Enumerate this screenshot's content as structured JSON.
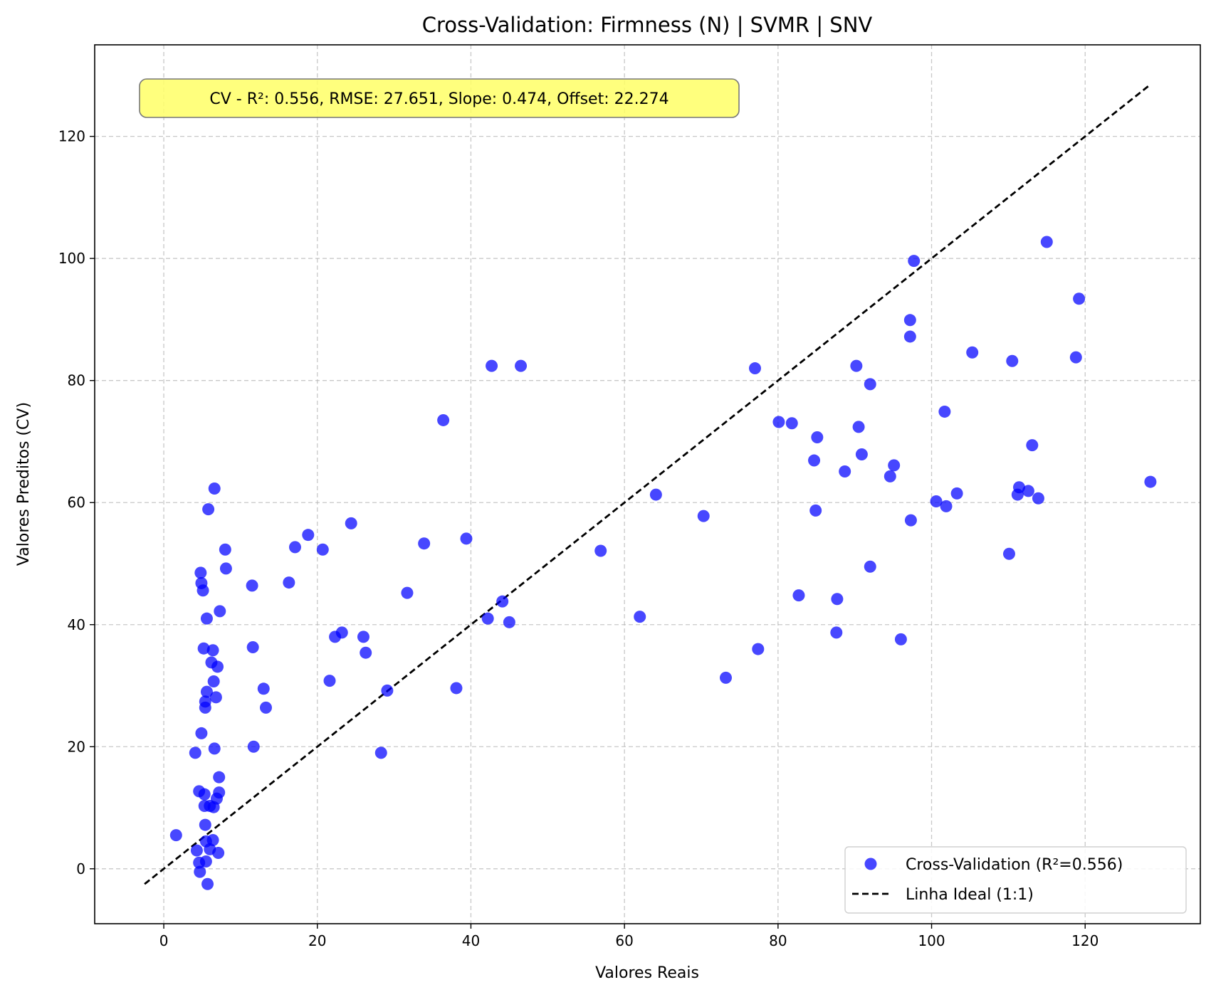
{
  "chart_data": {
    "type": "scatter",
    "title": "Cross-Validation: Firmness (N) | SVMR | SNV",
    "xlabel": "Valores Reais",
    "ylabel": "Valores Preditos (CV)",
    "xlim": [
      -9,
      135
    ],
    "ylim": [
      -9,
      135
    ],
    "xticks": [
      0,
      20,
      40,
      60,
      80,
      100,
      120
    ],
    "yticks": [
      0,
      20,
      40,
      60,
      80,
      100,
      120
    ],
    "grid": true,
    "legend_position": "lower-right",
    "annotation": "CV - R²: 0.556, RMSE: 27.651, Slope: 0.474, Offset: 22.274",
    "annotation_color": "#ffff66",
    "series": [
      {
        "name": "Cross-Validation (R²=0.556)",
        "kind": "scatter",
        "color": "#0000ff",
        "points": [
          [
            1.6,
            5.5
          ],
          [
            4.1,
            19
          ],
          [
            4.3,
            3
          ],
          [
            4.6,
            12.7
          ],
          [
            4.6,
            1
          ],
          [
            4.7,
            -0.5
          ],
          [
            4.8,
            48.5
          ],
          [
            4.9,
            46.8
          ],
          [
            4.9,
            22.2
          ],
          [
            5.1,
            45.6
          ],
          [
            5.2,
            36.1
          ],
          [
            5.3,
            12.2
          ],
          [
            5.3,
            10.3
          ],
          [
            5.4,
            7.2
          ],
          [
            5.4,
            27.4
          ],
          [
            5.4,
            26.4
          ],
          [
            5.5,
            1.2
          ],
          [
            5.6,
            29
          ],
          [
            5.6,
            41
          ],
          [
            5.7,
            -2.5
          ],
          [
            5.8,
            58.9
          ],
          [
            6,
            3.2
          ],
          [
            6,
            10.3
          ],
          [
            6.2,
            33.8
          ],
          [
            6.4,
            35.8
          ],
          [
            6.5,
            30.7
          ],
          [
            6.6,
            62.3
          ],
          [
            6.6,
            19.7
          ],
          [
            6.8,
            28.1
          ],
          [
            6.9,
            11.5
          ],
          [
            7,
            33.1
          ],
          [
            7.1,
            2.6
          ],
          [
            7.2,
            15
          ],
          [
            7.2,
            12.5
          ],
          [
            7.3,
            42.2
          ],
          [
            8,
            52.3
          ],
          [
            8.1,
            49.2
          ],
          [
            6.4,
            4.7
          ],
          [
            6.5,
            10.1
          ],
          [
            5.5,
            4.5
          ],
          [
            11.5,
            46.4
          ],
          [
            11.6,
            36.3
          ],
          [
            11.7,
            20
          ],
          [
            13,
            29.5
          ],
          [
            13.3,
            26.4
          ],
          [
            16.3,
            46.9
          ],
          [
            17.1,
            52.7
          ],
          [
            18.8,
            54.7
          ],
          [
            20.7,
            52.3
          ],
          [
            21.6,
            30.8
          ],
          [
            22.3,
            38
          ],
          [
            23.2,
            38.7
          ],
          [
            24.4,
            56.6
          ],
          [
            26,
            38
          ],
          [
            26.3,
            35.4
          ],
          [
            28.3,
            19
          ],
          [
            29.1,
            29.2
          ],
          [
            31.7,
            45.2
          ],
          [
            33.9,
            53.3
          ],
          [
            36.4,
            73.5
          ],
          [
            38.1,
            29.6
          ],
          [
            39.4,
            54.1
          ],
          [
            42.2,
            41
          ],
          [
            42.7,
            82.4
          ],
          [
            44.1,
            43.8
          ],
          [
            45,
            40.4
          ],
          [
            46.5,
            82.4
          ],
          [
            56.9,
            52.1
          ],
          [
            62,
            41.3
          ],
          [
            64.1,
            61.3
          ],
          [
            70.3,
            57.8
          ],
          [
            73.2,
            31.3
          ],
          [
            77,
            82
          ],
          [
            77.4,
            36
          ],
          [
            80.1,
            73.2
          ],
          [
            81.8,
            73
          ],
          [
            82.7,
            44.8
          ],
          [
            84.7,
            66.9
          ],
          [
            84.9,
            58.7
          ],
          [
            85.1,
            70.7
          ],
          [
            87.6,
            38.7
          ],
          [
            87.7,
            44.2
          ],
          [
            88.7,
            65.1
          ],
          [
            90.2,
            82.4
          ],
          [
            90.5,
            72.4
          ],
          [
            90.9,
            67.9
          ],
          [
            92,
            79.4
          ],
          [
            92,
            49.5
          ],
          [
            94.6,
            64.3
          ],
          [
            95.1,
            66.1
          ],
          [
            96,
            37.6
          ],
          [
            97.2,
            89.9
          ],
          [
            97.2,
            87.2
          ],
          [
            97.3,
            57.1
          ],
          [
            97.7,
            99.6
          ],
          [
            100.6,
            60.2
          ],
          [
            101.7,
            74.9
          ],
          [
            101.9,
            59.4
          ],
          [
            103.3,
            61.5
          ],
          [
            105.3,
            84.6
          ],
          [
            110.1,
            51.6
          ],
          [
            110.5,
            83.2
          ],
          [
            111.2,
            61.3
          ],
          [
            111.4,
            62.5
          ],
          [
            112.6,
            61.9
          ],
          [
            113.1,
            69.4
          ],
          [
            113.9,
            60.7
          ],
          [
            115,
            102.7
          ],
          [
            118.8,
            83.8
          ],
          [
            119.2,
            93.4
          ],
          [
            128.5,
            63.4
          ]
        ]
      },
      {
        "name": "Linha Ideal (1:1)",
        "kind": "line",
        "color": "#000000",
        "points": [
          [
            -2.5,
            -2.5
          ],
          [
            128.5,
            128.5
          ]
        ]
      }
    ]
  }
}
